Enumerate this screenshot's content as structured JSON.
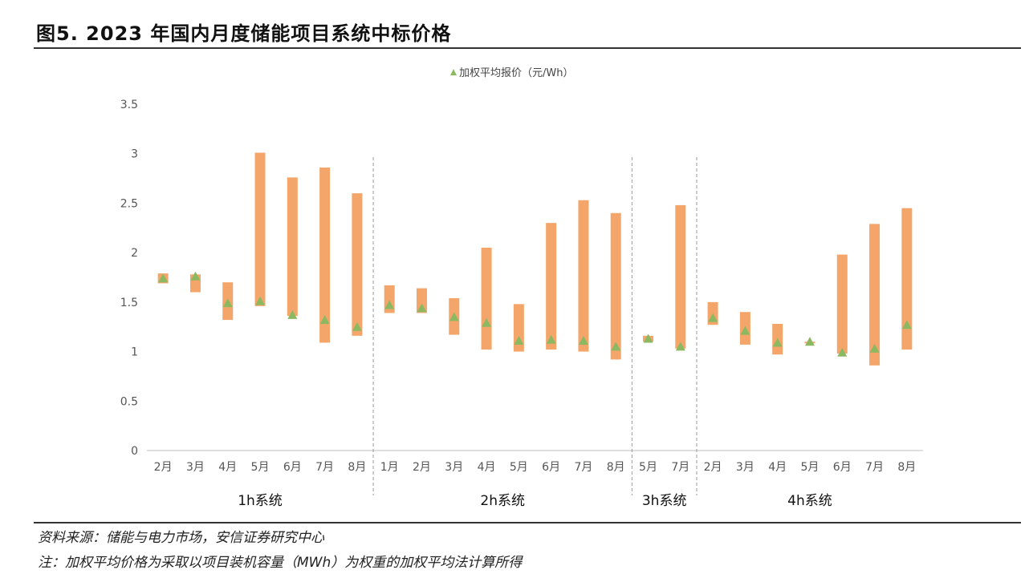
{
  "figure": {
    "title": "图5. 2023 年国内月度储能项目系统中标价格",
    "source": "资料来源：储能与电力市场，安信证券研究中心",
    "note": "注：加权平均价格为采取以项目装机容量（MWh）为权重的加权平均法计算所得"
  },
  "colors": {
    "bar": "#F4A66A",
    "marker": "#8DB862",
    "axis": "#BFBFBF",
    "separator": "#9A9A9A"
  },
  "chart_data": {
    "type": "bar",
    "title": "",
    "xlabel": "",
    "ylabel": "",
    "ylim": [
      0,
      3.5
    ],
    "yticks": [
      "0",
      "0.5",
      "1",
      "1.5",
      "2",
      "2.5",
      "3",
      "3.5"
    ],
    "legend": {
      "position": "top-center",
      "label": "加权平均报价（元/Wh）"
    },
    "groups": [
      {
        "label": "1h系统",
        "categories": [
          "2月",
          "3月",
          "4月",
          "5月",
          "6月",
          "7月",
          "8月"
        ],
        "low": [
          1.69,
          1.6,
          1.32,
          1.46,
          1.36,
          1.09,
          1.16
        ],
        "high": [
          1.79,
          1.78,
          1.7,
          3.01,
          2.76,
          2.86,
          2.6
        ],
        "avg": [
          1.74,
          1.76,
          1.49,
          1.51,
          1.37,
          1.32,
          1.25
        ]
      },
      {
        "label": "2h系统",
        "categories": [
          "1月",
          "2月",
          "3月",
          "4月",
          "5月",
          "6月",
          "7月",
          "8月"
        ],
        "low": [
          1.39,
          1.39,
          1.17,
          1.02,
          1.0,
          1.02,
          1.0,
          0.92
        ],
        "high": [
          1.67,
          1.64,
          1.54,
          2.05,
          1.48,
          2.3,
          2.53,
          2.4
        ],
        "avg": [
          1.47,
          1.44,
          1.35,
          1.29,
          1.11,
          1.12,
          1.11,
          1.05
        ]
      },
      {
        "label": "3h系统",
        "categories": [
          "5月",
          "7月"
        ],
        "low": [
          1.1,
          1.03
        ],
        "high": [
          1.16,
          2.48
        ],
        "avg": [
          1.13,
          1.05
        ]
      },
      {
        "label": "4h系统",
        "categories": [
          "2月",
          "3月",
          "4月",
          "5月",
          "6月",
          "7月",
          "8月"
        ],
        "low": [
          1.27,
          1.07,
          0.97,
          1.1,
          0.98,
          0.86,
          1.02
        ],
        "high": [
          1.5,
          1.4,
          1.28,
          1.1,
          1.98,
          2.29,
          2.45
        ],
        "avg": [
          1.34,
          1.21,
          1.09,
          1.1,
          0.99,
          1.03,
          1.27
        ]
      }
    ]
  }
}
